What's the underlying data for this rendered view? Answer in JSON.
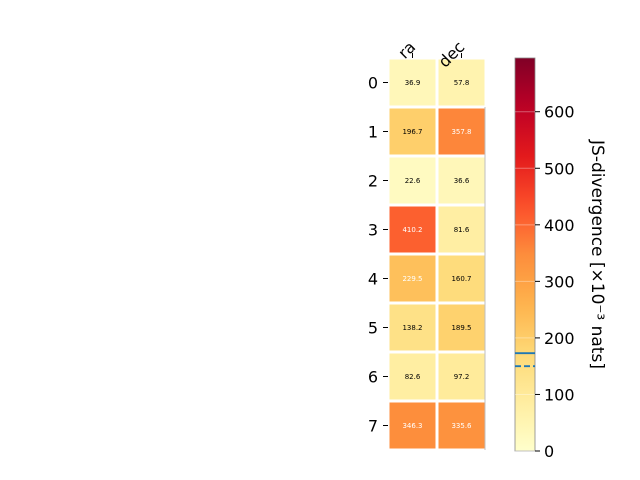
{
  "chart_data": {
    "type": "heatmap",
    "columns": [
      "ra",
      "dec"
    ],
    "rows": [
      "0",
      "1",
      "2",
      "3",
      "4",
      "5",
      "6",
      "7"
    ],
    "values": [
      [
        36.9,
        57.8
      ],
      [
        196.7,
        357.8
      ],
      [
        22.6,
        36.6
      ],
      [
        410.2,
        81.6
      ],
      [
        229.5,
        160.7
      ],
      [
        138.2,
        189.5
      ],
      [
        82.6,
        97.2
      ],
      [
        346.3,
        335.6
      ]
    ],
    "cell_labels": [
      [
        "36.9",
        "57.8"
      ],
      [
        "196.7",
        "357.8"
      ],
      [
        "22.6",
        "36.6"
      ],
      [
        "410.2",
        "81.6"
      ],
      [
        "229.5",
        "160.7"
      ],
      [
        "138.2",
        "189.5"
      ],
      [
        "82.6",
        "97.2"
      ],
      [
        "346.3",
        "335.6"
      ]
    ],
    "colormap": "YlOrRd",
    "vmin": 0,
    "vmax": 695,
    "colorbar": {
      "label": "JS-divergence [×10⁻³ nats]",
      "ticks": [
        0,
        100,
        200,
        300,
        400,
        500,
        600
      ],
      "tick_labels": [
        "0",
        "100",
        "200",
        "300",
        "400",
        "500",
        "600"
      ],
      "markers": [
        {
          "value": 173,
          "style": "solid",
          "color": "#1f77b4"
        },
        {
          "value": 150,
          "style": "dashed",
          "color": "#1f77b4"
        }
      ]
    },
    "grid": false
  }
}
